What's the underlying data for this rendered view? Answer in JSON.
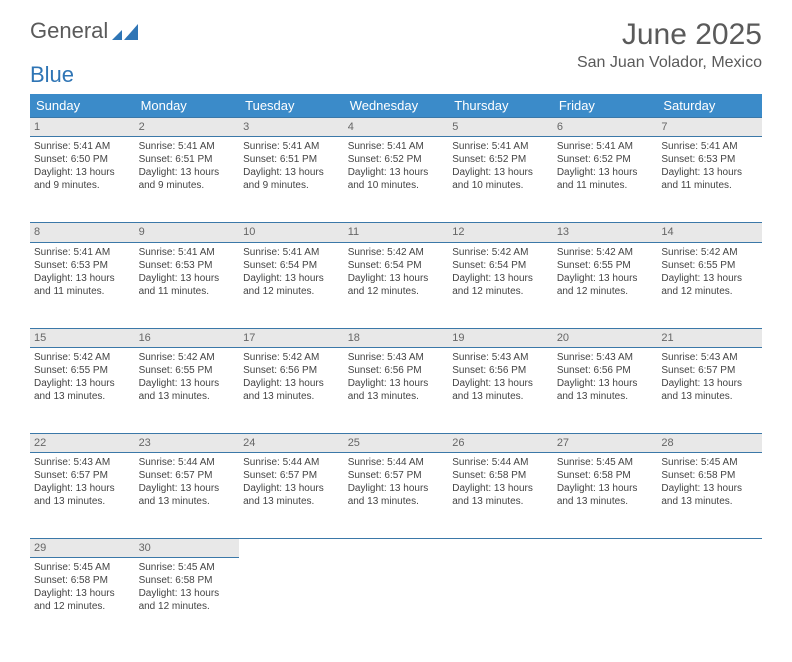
{
  "logo": {
    "word1": "General",
    "word2": "Blue"
  },
  "title": "June 2025",
  "location": "San Juan Volador, Mexico",
  "colors": {
    "header_bg": "#3b8bc9",
    "header_text": "#ffffff",
    "daynum_bg": "#e8e8e8",
    "rule": "#3b78a8",
    "title_color": "#5a5a5a",
    "logo_blue": "#2f75b5"
  },
  "day_labels": [
    "Sunday",
    "Monday",
    "Tuesday",
    "Wednesday",
    "Thursday",
    "Friday",
    "Saturday"
  ],
  "weeks": [
    [
      {
        "n": "1",
        "sr": "5:41 AM",
        "ss": "6:50 PM",
        "dl": "13 hours and 9 minutes."
      },
      {
        "n": "2",
        "sr": "5:41 AM",
        "ss": "6:51 PM",
        "dl": "13 hours and 9 minutes."
      },
      {
        "n": "3",
        "sr": "5:41 AM",
        "ss": "6:51 PM",
        "dl": "13 hours and 9 minutes."
      },
      {
        "n": "4",
        "sr": "5:41 AM",
        "ss": "6:52 PM",
        "dl": "13 hours and 10 minutes."
      },
      {
        "n": "5",
        "sr": "5:41 AM",
        "ss": "6:52 PM",
        "dl": "13 hours and 10 minutes."
      },
      {
        "n": "6",
        "sr": "5:41 AM",
        "ss": "6:52 PM",
        "dl": "13 hours and 11 minutes."
      },
      {
        "n": "7",
        "sr": "5:41 AM",
        "ss": "6:53 PM",
        "dl": "13 hours and 11 minutes."
      }
    ],
    [
      {
        "n": "8",
        "sr": "5:41 AM",
        "ss": "6:53 PM",
        "dl": "13 hours and 11 minutes."
      },
      {
        "n": "9",
        "sr": "5:41 AM",
        "ss": "6:53 PM",
        "dl": "13 hours and 11 minutes."
      },
      {
        "n": "10",
        "sr": "5:41 AM",
        "ss": "6:54 PM",
        "dl": "13 hours and 12 minutes."
      },
      {
        "n": "11",
        "sr": "5:42 AM",
        "ss": "6:54 PM",
        "dl": "13 hours and 12 minutes."
      },
      {
        "n": "12",
        "sr": "5:42 AM",
        "ss": "6:54 PM",
        "dl": "13 hours and 12 minutes."
      },
      {
        "n": "13",
        "sr": "5:42 AM",
        "ss": "6:55 PM",
        "dl": "13 hours and 12 minutes."
      },
      {
        "n": "14",
        "sr": "5:42 AM",
        "ss": "6:55 PM",
        "dl": "13 hours and 12 minutes."
      }
    ],
    [
      {
        "n": "15",
        "sr": "5:42 AM",
        "ss": "6:55 PM",
        "dl": "13 hours and 13 minutes."
      },
      {
        "n": "16",
        "sr": "5:42 AM",
        "ss": "6:55 PM",
        "dl": "13 hours and 13 minutes."
      },
      {
        "n": "17",
        "sr": "5:42 AM",
        "ss": "6:56 PM",
        "dl": "13 hours and 13 minutes."
      },
      {
        "n": "18",
        "sr": "5:43 AM",
        "ss": "6:56 PM",
        "dl": "13 hours and 13 minutes."
      },
      {
        "n": "19",
        "sr": "5:43 AM",
        "ss": "6:56 PM",
        "dl": "13 hours and 13 minutes."
      },
      {
        "n": "20",
        "sr": "5:43 AM",
        "ss": "6:56 PM",
        "dl": "13 hours and 13 minutes."
      },
      {
        "n": "21",
        "sr": "5:43 AM",
        "ss": "6:57 PM",
        "dl": "13 hours and 13 minutes."
      }
    ],
    [
      {
        "n": "22",
        "sr": "5:43 AM",
        "ss": "6:57 PM",
        "dl": "13 hours and 13 minutes."
      },
      {
        "n": "23",
        "sr": "5:44 AM",
        "ss": "6:57 PM",
        "dl": "13 hours and 13 minutes."
      },
      {
        "n": "24",
        "sr": "5:44 AM",
        "ss": "6:57 PM",
        "dl": "13 hours and 13 minutes."
      },
      {
        "n": "25",
        "sr": "5:44 AM",
        "ss": "6:57 PM",
        "dl": "13 hours and 13 minutes."
      },
      {
        "n": "26",
        "sr": "5:44 AM",
        "ss": "6:58 PM",
        "dl": "13 hours and 13 minutes."
      },
      {
        "n": "27",
        "sr": "5:45 AM",
        "ss": "6:58 PM",
        "dl": "13 hours and 13 minutes."
      },
      {
        "n": "28",
        "sr": "5:45 AM",
        "ss": "6:58 PM",
        "dl": "13 hours and 13 minutes."
      }
    ],
    [
      {
        "n": "29",
        "sr": "5:45 AM",
        "ss": "6:58 PM",
        "dl": "13 hours and 12 minutes."
      },
      {
        "n": "30",
        "sr": "5:45 AM",
        "ss": "6:58 PM",
        "dl": "13 hours and 12 minutes."
      },
      null,
      null,
      null,
      null,
      null
    ]
  ],
  "labels": {
    "sunrise": "Sunrise:",
    "sunset": "Sunset:",
    "daylight": "Daylight:"
  }
}
